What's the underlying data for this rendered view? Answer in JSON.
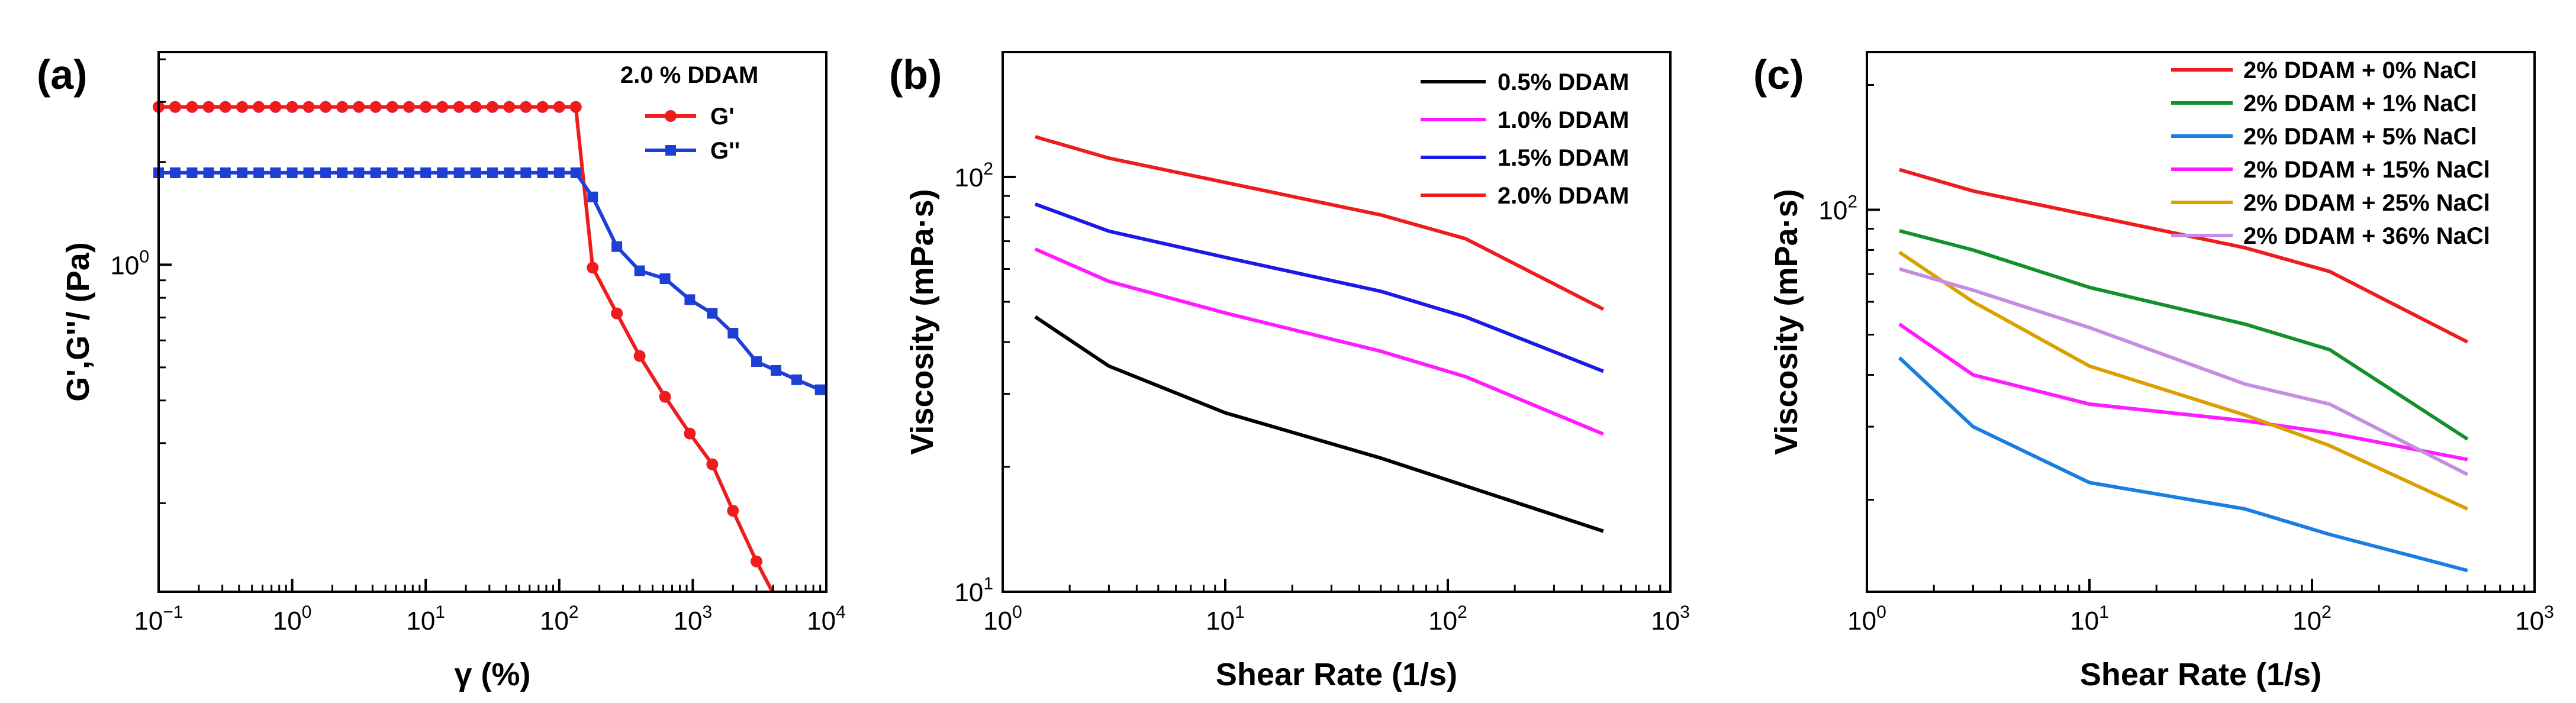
{
  "chart_data": [
    {
      "panel": "(a)",
      "type": "line",
      "xlabel": "γ (%)",
      "ylabel": "G',G''/ (Pa)",
      "xscale": "log",
      "yscale": "log",
      "xlim": [
        0.1,
        10000
      ],
      "ylim": [
        0.11,
        4.2
      ],
      "xticks": [
        {
          "value": 0.1,
          "base": "10",
          "exp": "−1"
        },
        {
          "value": 1,
          "base": "10",
          "exp": "0"
        },
        {
          "value": 10,
          "base": "10",
          "exp": "1"
        },
        {
          "value": 100,
          "base": "10",
          "exp": "2"
        },
        {
          "value": 1000,
          "base": "10",
          "exp": "3"
        },
        {
          "value": 10000,
          "base": "10",
          "exp": "4"
        }
      ],
      "yticks": [
        {
          "value": 1,
          "base": "10",
          "exp": "0"
        }
      ],
      "legend_title": "2.0 % DDAM",
      "legend_position": "top-right",
      "series": [
        {
          "name": "G'",
          "color": "#ee1c1c",
          "marker": "circle",
          "x": [
            0.1,
            0.133,
            0.178,
            0.237,
            0.316,
            0.422,
            0.562,
            0.75,
            1,
            1.33,
            1.78,
            2.37,
            3.16,
            4.22,
            5.62,
            7.5,
            10,
            13.3,
            17.8,
            23.7,
            31.6,
            42.2,
            56.2,
            75,
            100,
            133,
            178,
            270,
            400,
            620,
            950,
            1400,
            2000,
            3000,
            4200,
            5800
          ],
          "y": [
            2.9,
            2.9,
            2.9,
            2.9,
            2.9,
            2.9,
            2.9,
            2.9,
            2.9,
            2.9,
            2.9,
            2.9,
            2.9,
            2.9,
            2.9,
            2.9,
            2.9,
            2.9,
            2.9,
            2.9,
            2.9,
            2.9,
            2.9,
            2.9,
            2.9,
            2.9,
            0.98,
            0.72,
            0.54,
            0.41,
            0.32,
            0.26,
            0.19,
            0.135,
            0.105,
            0.085
          ]
        },
        {
          "name": "G''",
          "color": "#1e3fd6",
          "marker": "square",
          "x": [
            0.1,
            0.133,
            0.178,
            0.237,
            0.316,
            0.422,
            0.562,
            0.75,
            1,
            1.33,
            1.78,
            2.37,
            3.16,
            4.22,
            5.62,
            7.5,
            10,
            13.3,
            17.8,
            23.7,
            31.6,
            42.2,
            56.2,
            75,
            100,
            133,
            178,
            270,
            400,
            620,
            950,
            1400,
            2000,
            3000,
            4200,
            6000,
            9000
          ],
          "y": [
            1.86,
            1.86,
            1.86,
            1.86,
            1.86,
            1.86,
            1.86,
            1.86,
            1.86,
            1.86,
            1.86,
            1.86,
            1.86,
            1.86,
            1.86,
            1.86,
            1.86,
            1.86,
            1.86,
            1.86,
            1.86,
            1.86,
            1.86,
            1.86,
            1.86,
            1.86,
            1.58,
            1.13,
            0.96,
            0.91,
            0.79,
            0.72,
            0.63,
            0.52,
            0.49,
            0.46,
            0.43
          ]
        }
      ]
    },
    {
      "panel": "(b)",
      "type": "line",
      "xlabel": "Shear Rate (1/s)",
      "ylabel": "Viscosity (mPa·s)",
      "xscale": "log",
      "yscale": "log",
      "xlim": [
        1,
        1000
      ],
      "ylim": [
        10,
        200
      ],
      "xticks": [
        {
          "value": 1,
          "base": "10",
          "exp": "0"
        },
        {
          "value": 10,
          "base": "10",
          "exp": "1"
        },
        {
          "value": 100,
          "base": "10",
          "exp": "2"
        },
        {
          "value": 1000,
          "base": "10",
          "exp": "3"
        }
      ],
      "yticks": [
        {
          "value": 10,
          "base": "10",
          "exp": "1"
        },
        {
          "value": 100,
          "base": "10",
          "exp": "2"
        }
      ],
      "legend_position": "top-right",
      "series": [
        {
          "name": "0.5% DDAM",
          "color": "#000000",
          "x": [
            1.4,
            3,
            10,
            50,
            120,
            500
          ],
          "y": [
            46,
            35,
            27,
            21,
            18,
            14
          ]
        },
        {
          "name": "1.0% DDAM",
          "color": "#ff1aff",
          "x": [
            1.4,
            3,
            10,
            50,
            120,
            500
          ],
          "y": [
            67,
            56,
            47,
            38,
            33,
            24
          ]
        },
        {
          "name": "1.5% DDAM",
          "color": "#1a1ae6",
          "x": [
            1.4,
            3,
            10,
            50,
            120,
            500
          ],
          "y": [
            86,
            74,
            64,
            53,
            46,
            34
          ]
        },
        {
          "name": "2.0% DDAM",
          "color": "#ee1c1c",
          "x": [
            1.4,
            3,
            10,
            50,
            120,
            500
          ],
          "y": [
            125,
            111,
            97,
            81,
            71,
            48
          ]
        }
      ]
    },
    {
      "panel": "(c)",
      "type": "line",
      "xlabel": "Shear Rate (1/s)",
      "ylabel": "Viscosity (mPa·s)",
      "xscale": "log",
      "yscale": "log",
      "xlim": [
        1,
        1000
      ],
      "ylim": [
        12,
        240
      ],
      "xticks": [
        {
          "value": 1,
          "base": "10",
          "exp": "0"
        },
        {
          "value": 10,
          "base": "10",
          "exp": "1"
        },
        {
          "value": 100,
          "base": "10",
          "exp": "2"
        },
        {
          "value": 1000,
          "base": "10",
          "exp": "3"
        }
      ],
      "yticks": [
        {
          "value": 100,
          "base": "10",
          "exp": "2"
        }
      ],
      "legend_position": "top-right",
      "series": [
        {
          "name": "2% DDAM + 0% NaCl",
          "color": "#ee1c1c",
          "x": [
            1.4,
            3,
            10,
            50,
            120,
            500
          ],
          "y": [
            125,
            111,
            97,
            81,
            71,
            48
          ]
        },
        {
          "name": "2% DDAM + 1% NaCl",
          "color": "#138f2c",
          "x": [
            1.4,
            3,
            10,
            50,
            120,
            500
          ],
          "y": [
            89,
            80,
            65,
            53,
            46,
            28
          ]
        },
        {
          "name": "2% DDAM + 5% NaCl",
          "color": "#1a7de0",
          "x": [
            1.4,
            3,
            10,
            50,
            120,
            500
          ],
          "y": [
            44,
            30,
            22,
            19,
            16.5,
            13.5
          ]
        },
        {
          "name": "2% DDAM + 15% NaCl",
          "color": "#ff1aff",
          "x": [
            1.4,
            3,
            10,
            50,
            120,
            500
          ],
          "y": [
            53,
            40,
            34,
            31,
            29,
            25
          ]
        },
        {
          "name": "2% DDAM + 25% NaCl",
          "color": "#daa000",
          "x": [
            1.4,
            3,
            10,
            50,
            120,
            500
          ],
          "y": [
            79,
            60,
            42,
            32,
            27,
            19
          ]
        },
        {
          "name": "2% DDAM + 36% NaCl",
          "color": "#c58de0",
          "x": [
            1.4,
            3,
            10,
            50,
            120,
            500
          ],
          "y": [
            72,
            64,
            52,
            38,
            34,
            23
          ]
        }
      ]
    }
  ]
}
